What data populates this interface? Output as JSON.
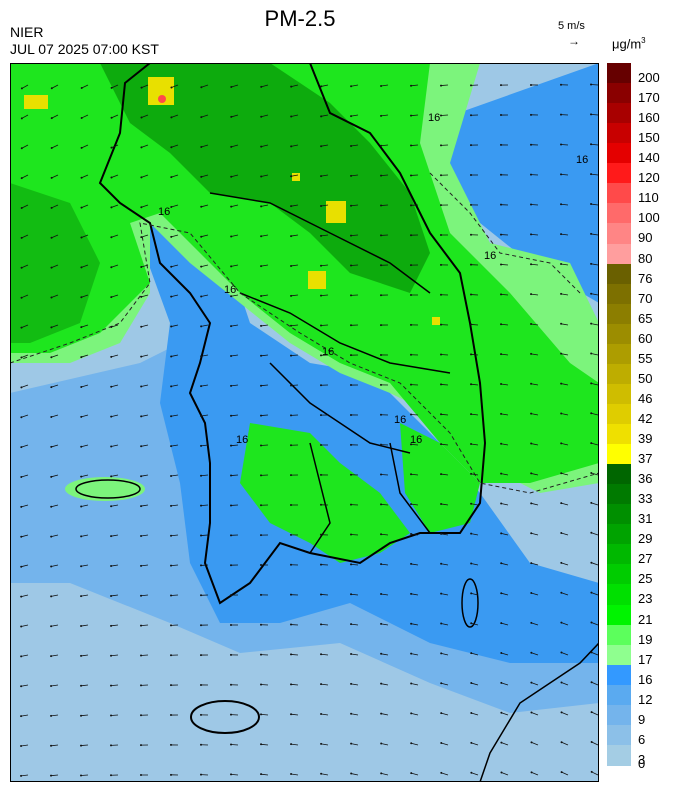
{
  "header": {
    "agency": "NIER",
    "timestamp": "JUL 07 2025 07:00 KST",
    "title": "PM-2.5",
    "wind_scale_label": "5 m/s",
    "wind_scale_arrow": "→",
    "unit_base": "μg/m",
    "unit_exp": "3"
  },
  "map": {
    "contour_labels": [
      "16",
      "16",
      "16",
      "16",
      "16",
      "16",
      "16",
      "16",
      "16"
    ]
  },
  "legend": {
    "labels": [
      "200",
      "170",
      "160",
      "150",
      "140",
      "120",
      "110",
      "100",
      "90",
      "80",
      "76",
      "70",
      "65",
      "60",
      "55",
      "50",
      "46",
      "42",
      "39",
      "37",
      "36",
      "33",
      "31",
      "29",
      "27",
      "25",
      "23",
      "21",
      "19",
      "17",
      "16",
      "12",
      "9",
      "6",
      "3",
      "0"
    ],
    "colors": [
      "#660000",
      "#8a0000",
      "#a80000",
      "#c80000",
      "#e40000",
      "#ff1a1a",
      "#ff4a4a",
      "#ff6a6a",
      "#ff8585",
      "#ff9e9e",
      "#6a6000",
      "#7d7000",
      "#8c7e00",
      "#9c8d00",
      "#ad9d00",
      "#bead00",
      "#cfbd00",
      "#dfcd00",
      "#efe000",
      "#ffff00",
      "#006600",
      "#007a00",
      "#008f00",
      "#00a300",
      "#00b800",
      "#00cc00",
      "#00e000",
      "#00f400",
      "#5cff5c",
      "#8fff8f",
      "#3399ff",
      "#5aaaf0",
      "#74b4ec",
      "#8cc0e8",
      "#a4cde4"
    ]
  },
  "colors": {
    "sea_low": "#9ec8e6",
    "blue_mid": "#74b4ec",
    "blue_high": "#3a9af2",
    "green_light": "#7cf47c",
    "green": "#1ee61e",
    "green_dark": "#0aa00a",
    "yellow": "#e8e000"
  }
}
